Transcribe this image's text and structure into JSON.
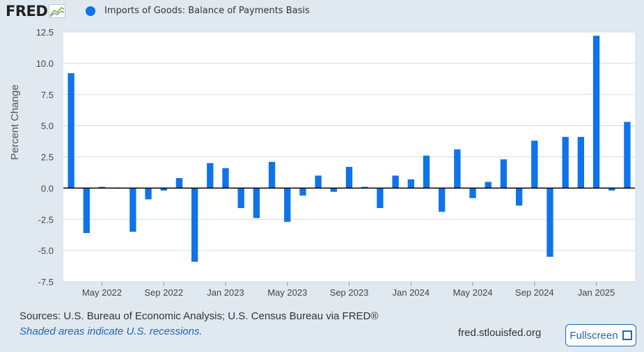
{
  "header": {
    "logo_text": "FRED",
    "legend_label": "Imports of Goods: Balance of Payments Basis"
  },
  "footer": {
    "sources": "Sources: U.S. Bureau of Economic Analysis; U.S. Census Bureau via FRED®",
    "shaded_note": "Shaded areas indicate U.S. recessions.",
    "site": "fred.stlouisfed.org",
    "fullscreen_label": "Fullscreen"
  },
  "colors": {
    "bar": "#0f73ea",
    "background": "#e1e9f0",
    "plot_background": "#ffffff",
    "link": "#1b66b8"
  },
  "icons": [
    "fred-logo-graph-icon",
    "fullscreen-icon"
  ],
  "chart_data": {
    "type": "bar",
    "ylabel": "Percent Change",
    "ylim": [
      -7.5,
      12.5
    ],
    "yticks": [
      12.5,
      10.0,
      7.5,
      5.0,
      2.5,
      0.0,
      -2.5,
      -5.0,
      -7.5
    ],
    "ytick_labels": [
      "12.5",
      "10.0",
      "7.5",
      "5.0",
      "2.5",
      "0.0",
      "-2.5",
      "-5.0",
      "-7.5"
    ],
    "grid": true,
    "legend_position": "top",
    "x_axis_labels": [
      {
        "label": "May 2022",
        "date": "2022-05"
      },
      {
        "label": "Sep 2022",
        "date": "2022-09"
      },
      {
        "label": "Jan 2023",
        "date": "2023-01"
      },
      {
        "label": "May 2023",
        "date": "2023-05"
      },
      {
        "label": "Sep 2023",
        "date": "2023-09"
      },
      {
        "label": "Jan 2024",
        "date": "2024-01"
      },
      {
        "label": "May 2024",
        "date": "2024-05"
      },
      {
        "label": "Sep 2024",
        "date": "2024-09"
      },
      {
        "label": "Jan 2025",
        "date": "2025-01"
      }
    ],
    "series": [
      {
        "name": "Imports of Goods: Balance of Payments Basis",
        "x": [
          "2022-03",
          "2022-04",
          "2022-05",
          "2022-06",
          "2022-07",
          "2022-08",
          "2022-09",
          "2022-10",
          "2022-11",
          "2022-12",
          "2023-01",
          "2023-02",
          "2023-03",
          "2023-04",
          "2023-05",
          "2023-06",
          "2023-07",
          "2023-08",
          "2023-09",
          "2023-10",
          "2023-11",
          "2023-12",
          "2024-01",
          "2024-02",
          "2024-03",
          "2024-04",
          "2024-05",
          "2024-06",
          "2024-07",
          "2024-08",
          "2024-09",
          "2024-10",
          "2024-11",
          "2024-12",
          "2025-01",
          "2025-02",
          "2025-03"
        ],
        "values": [
          9.2,
          -3.6,
          0.1,
          0.0,
          -3.5,
          -0.9,
          -0.2,
          0.8,
          -5.9,
          2.0,
          1.6,
          -1.6,
          -2.4,
          2.1,
          -2.7,
          -0.6,
          1.0,
          -0.3,
          1.7,
          0.1,
          -1.6,
          1.0,
          0.7,
          2.6,
          -1.9,
          3.1,
          -0.8,
          0.5,
          2.3,
          -1.4,
          3.8,
          -5.5,
          4.1,
          4.1,
          12.2,
          -0.2,
          5.3
        ]
      }
    ]
  }
}
